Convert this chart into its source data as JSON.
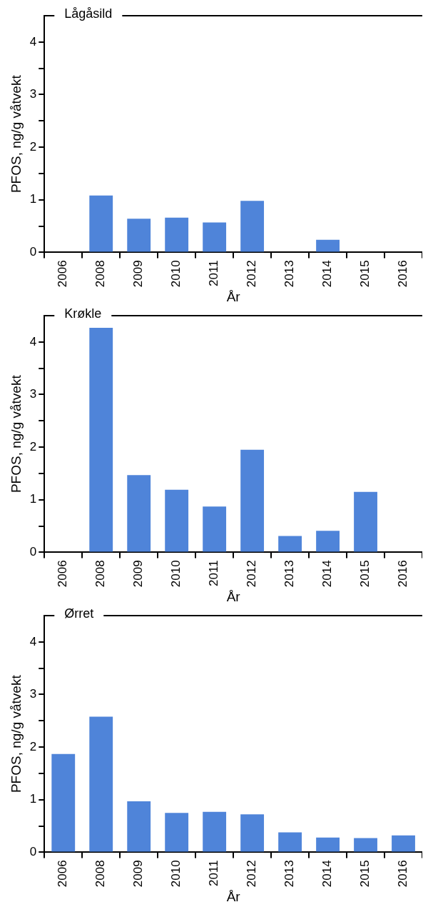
{
  "chart_data": [
    {
      "type": "bar",
      "title": "Lågåsild",
      "xlabel": "År",
      "ylabel": "PFOS, ng/g våtvekt",
      "categories": [
        "2006",
        "2008",
        "2009",
        "2010",
        "2011",
        "2012",
        "2013",
        "2014",
        "2015",
        "2016"
      ],
      "color": "#4f84d9",
      "ylim": [
        0,
        4.5
      ],
      "yticks": [
        0,
        {
          "value": 0.5,
          "label": null
        },
        1,
        {
          "value": 1.5,
          "label": null
        },
        2,
        {
          "value": 2.5,
          "label": null
        },
        3,
        {
          "value": 3.5,
          "label": null
        },
        4
      ],
      "grid": false,
      "values": [
        null,
        1.08,
        0.64,
        0.66,
        0.57,
        0.98,
        null,
        0.24,
        null,
        null
      ]
    },
    {
      "type": "bar",
      "title": "Krøkle",
      "xlabel": "År",
      "ylabel": "PFOS, ng/g våtvekt",
      "categories": [
        "2006",
        "2008",
        "2009",
        "2010",
        "2011",
        "2012",
        "2013",
        "2014",
        "2015",
        "2016"
      ],
      "color": "#4f84d9",
      "ylim": [
        0,
        4.5
      ],
      "yticks": [
        0,
        {
          "value": 0.5,
          "label": null
        },
        1,
        {
          "value": 1.5,
          "label": null
        },
        2,
        {
          "value": 2.5,
          "label": null
        },
        3,
        {
          "value": 3.5,
          "label": null
        },
        4
      ],
      "grid": false,
      "values": [
        null,
        4.27,
        1.47,
        1.19,
        0.87,
        1.95,
        0.31,
        0.41,
        1.15,
        null
      ]
    },
    {
      "type": "bar",
      "title": "Ørret",
      "xlabel": "År",
      "ylabel": "PFOS, ng/g våtvekt",
      "categories": [
        "2006",
        "2008",
        "2009",
        "2010",
        "2011",
        "2012",
        "2013",
        "2014",
        "2015",
        "2016"
      ],
      "color": "#4f84d9",
      "ylim": [
        0,
        4.5
      ],
      "yticks": [
        0,
        {
          "value": 0.5,
          "label": null
        },
        1,
        {
          "value": 1.5,
          "label": null
        },
        2,
        {
          "value": 2.5,
          "label": null
        },
        3,
        {
          "value": 3.5,
          "label": null
        },
        4
      ],
      "grid": false,
      "values": [
        1.87,
        2.58,
        0.97,
        0.75,
        0.77,
        0.72,
        0.38,
        0.28,
        0.27,
        0.32
      ]
    }
  ]
}
